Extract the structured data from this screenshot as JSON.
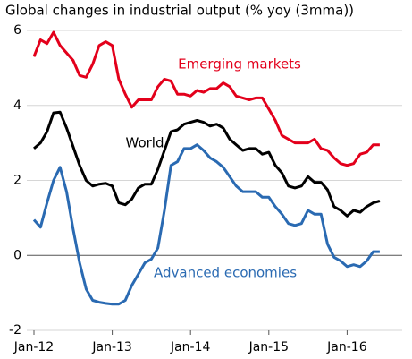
{
  "chart_data": {
    "type": "line",
    "title": "Global changes in industrial output (% yoy (3mma))",
    "categories": [
      "Jan-12",
      null,
      null,
      null,
      null,
      null,
      null,
      null,
      null,
      null,
      null,
      null,
      "Jan-13",
      null,
      null,
      null,
      null,
      null,
      null,
      null,
      null,
      null,
      null,
      null,
      "Jan-14",
      null,
      null,
      null,
      null,
      null,
      null,
      null,
      null,
      null,
      null,
      null,
      "Jan-15",
      null,
      null,
      null,
      null,
      null,
      null,
      null,
      null,
      null,
      null,
      null,
      "Jan-16",
      null,
      null,
      null,
      null,
      null
    ],
    "series": [
      {
        "name": "Emerging markets",
        "color": "#e3001b",
        "values": [
          5.3,
          5.75,
          5.65,
          5.95,
          5.6,
          5.4,
          5.2,
          4.8,
          4.75,
          5.1,
          5.6,
          5.7,
          5.6,
          4.7,
          4.3,
          3.95,
          4.15,
          4.15,
          4.15,
          4.5,
          4.7,
          4.65,
          4.3,
          4.3,
          4.25,
          4.4,
          4.35,
          4.45,
          4.45,
          4.6,
          4.5,
          4.25,
          4.2,
          4.15,
          4.2,
          4.2,
          3.9,
          3.6,
          3.2,
          3.1,
          3.0,
          3.0,
          3.0,
          3.1,
          2.85,
          2.8,
          2.6,
          2.45,
          2.4,
          2.45,
          2.7,
          2.75,
          2.95,
          2.95
        ]
      },
      {
        "name": "World",
        "color": "#000000",
        "values": [
          2.85,
          3.0,
          3.3,
          3.8,
          3.82,
          3.4,
          2.9,
          2.4,
          2.0,
          1.85,
          1.9,
          1.92,
          1.85,
          1.4,
          1.35,
          1.5,
          1.8,
          1.9,
          1.9,
          2.3,
          2.8,
          3.3,
          3.35,
          3.5,
          3.55,
          3.6,
          3.55,
          3.45,
          3.5,
          3.4,
          3.1,
          2.95,
          2.8,
          2.85,
          2.85,
          2.7,
          2.75,
          2.4,
          2.2,
          1.85,
          1.8,
          1.85,
          2.1,
          1.95,
          1.95,
          1.75,
          1.3,
          1.2,
          1.05,
          1.2,
          1.15,
          1.3,
          1.4,
          1.45
        ]
      },
      {
        "name": "Advanced economies",
        "color": "#2a6ab2",
        "values": [
          0.95,
          0.75,
          1.4,
          2.0,
          2.35,
          1.7,
          0.7,
          -0.2,
          -0.9,
          -1.2,
          -1.25,
          -1.28,
          -1.3,
          -1.3,
          -1.2,
          -0.8,
          -0.5,
          -0.2,
          -0.1,
          0.2,
          1.2,
          2.4,
          2.5,
          2.85,
          2.85,
          2.95,
          2.8,
          2.6,
          2.5,
          2.35,
          2.1,
          1.85,
          1.7,
          1.7,
          1.7,
          1.55,
          1.55,
          1.3,
          1.1,
          0.85,
          0.8,
          0.85,
          1.2,
          1.1,
          1.1,
          0.3,
          -0.05,
          -0.15,
          -0.3,
          -0.25,
          -0.3,
          -0.15,
          0.1,
          0.1
        ]
      }
    ],
    "ylim": [
      -2,
      6
    ],
    "yticks": [
      6,
      4,
      2,
      0,
      -2
    ],
    "grid": true
  }
}
